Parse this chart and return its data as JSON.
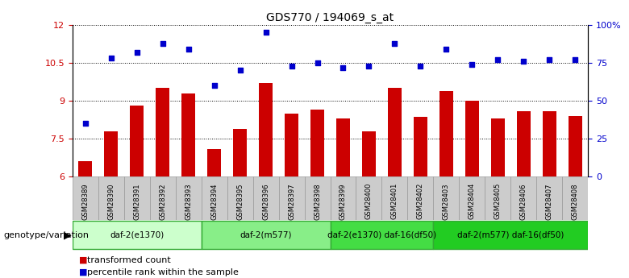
{
  "title": "GDS770 / 194069_s_at",
  "samples": [
    "GSM28389",
    "GSM28390",
    "GSM28391",
    "GSM28392",
    "GSM28393",
    "GSM28394",
    "GSM28395",
    "GSM28396",
    "GSM28397",
    "GSM28398",
    "GSM28399",
    "GSM28400",
    "GSM28401",
    "GSM28402",
    "GSM28403",
    "GSM28404",
    "GSM28405",
    "GSM28406",
    "GSM28407",
    "GSM28408"
  ],
  "transformed_count": [
    6.6,
    7.8,
    8.8,
    9.5,
    9.3,
    7.1,
    7.9,
    9.7,
    8.5,
    8.65,
    8.3,
    7.8,
    9.5,
    8.35,
    9.4,
    9.0,
    8.3,
    8.6,
    8.6,
    8.4
  ],
  "percentile_rank": [
    35,
    78,
    82,
    88,
    84,
    60,
    70,
    95,
    73,
    75,
    72,
    73,
    88,
    73,
    84,
    74,
    77,
    76,
    77,
    77
  ],
  "bar_color": "#cc0000",
  "dot_color": "#0000cc",
  "ylim_left": [
    6,
    12
  ],
  "ylim_right": [
    0,
    100
  ],
  "yticks_left": [
    6,
    7.5,
    9,
    10.5,
    12
  ],
  "yticks_right": [
    0,
    25,
    50,
    75,
    100
  ],
  "ytick_labels_right": [
    "0",
    "25",
    "50",
    "75",
    "100%"
  ],
  "groups": [
    {
      "label": "daf-2(e1370)",
      "start": 0,
      "end": 4,
      "color": "#ccffcc"
    },
    {
      "label": "daf-2(m577)",
      "start": 5,
      "end": 9,
      "color": "#88ee88"
    },
    {
      "label": "daf-2(e1370) daf-16(df50)",
      "start": 10,
      "end": 13,
      "color": "#44dd44"
    },
    {
      "label": "daf-2(m577) daf-16(df50)",
      "start": 14,
      "end": 19,
      "color": "#22cc22"
    }
  ],
  "genotype_label": "genotype/variation",
  "legend_bar_label": "transformed count",
  "legend_dot_label": "percentile rank within the sample",
  "sample_box_color": "#cccccc",
  "sample_box_edgecolor": "#999999",
  "background_color": "#ffffff"
}
